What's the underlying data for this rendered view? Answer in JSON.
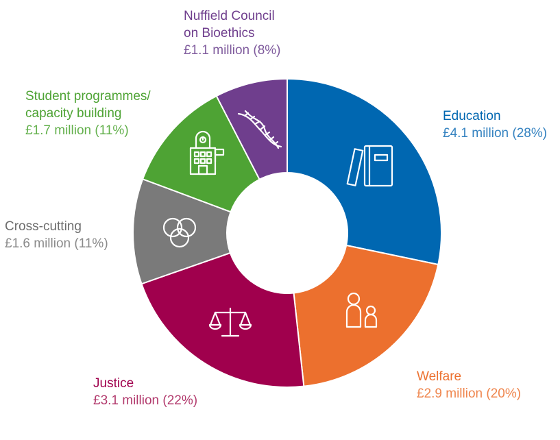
{
  "chart_data": {
    "type": "pie",
    "variant": "donut",
    "title": "",
    "series": [
      {
        "slices": [
          {
            "label": "Education",
            "name_lines": [
              "Education"
            ],
            "value_text": "£4.1 million (28%)",
            "value": 4.1,
            "percent": 28,
            "color": "#0067b1",
            "icon": "book-icon"
          },
          {
            "label": "Welfare",
            "name_lines": [
              "Welfare"
            ],
            "value_text": "£2.9 million (20%)",
            "value": 2.9,
            "percent": 20,
            "color": "#ec702e",
            "icon": "people-icon"
          },
          {
            "label": "Justice",
            "name_lines": [
              "Justice"
            ],
            "value_text": "£3.1 million (22%)",
            "value": 3.1,
            "percent": 22,
            "color": "#a0004d",
            "icon": "scales-icon"
          },
          {
            "label": "Cross-cutting",
            "name_lines": [
              "Cross-cutting"
            ],
            "value_text": "£1.6 million (11%)",
            "value": 1.6,
            "percent": 11,
            "color": "#7a7a7a",
            "icon": "circles-icon"
          },
          {
            "label": "Student programmes/ capacity building",
            "name_lines": [
              "Student programmes/",
              "capacity building"
            ],
            "value_text": "£1.7 million (11%)",
            "value": 1.7,
            "percent": 11,
            "color": "#4ea334",
            "icon": "building-icon"
          },
          {
            "label": "Nuffield Council on Bioethics",
            "name_lines": [
              "Nuffield Council",
              "on Bioethics"
            ],
            "value_text": "£1.1 million (8%)",
            "value": 1.1,
            "percent": 8,
            "color": "#6f3e8d",
            "icon": "dna-icon"
          }
        ]
      }
    ],
    "legend": "none"
  }
}
